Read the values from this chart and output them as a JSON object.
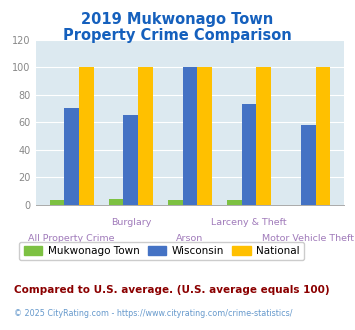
{
  "title_line1": "2019 Mukwonago Town",
  "title_line2": "Property Crime Comparison",
  "title_color": "#1560bd",
  "categories": [
    "All Property Crime",
    "Burglary",
    "Arson",
    "Larceny & Theft",
    "Motor Vehicle Theft"
  ],
  "mukwonago": [
    3,
    4,
    3,
    3,
    0
  ],
  "wisconsin": [
    70,
    65,
    100,
    73,
    58
  ],
  "national": [
    100,
    100,
    100,
    100,
    100
  ],
  "colors": {
    "mukwonago": "#7dc142",
    "wisconsin": "#4472c4",
    "national": "#ffc000"
  },
  "ylim": [
    0,
    120
  ],
  "yticks": [
    0,
    20,
    40,
    60,
    80,
    100,
    120
  ],
  "background_color": "#dce9f0",
  "legend_labels": [
    "Mukwonago Town",
    "Wisconsin",
    "National"
  ],
  "footnote1": "Compared to U.S. average. (U.S. average equals 100)",
  "footnote2": "© 2025 CityRating.com - https://www.cityrating.com/crime-statistics/",
  "footnote1_color": "#8b0000",
  "footnote2_color": "#6699cc",
  "upper_labels": [
    "Burglary",
    "Larceny & Theft"
  ],
  "lower_labels": [
    "All Property Crime",
    "Arson",
    "Motor Vehicle Theft"
  ]
}
